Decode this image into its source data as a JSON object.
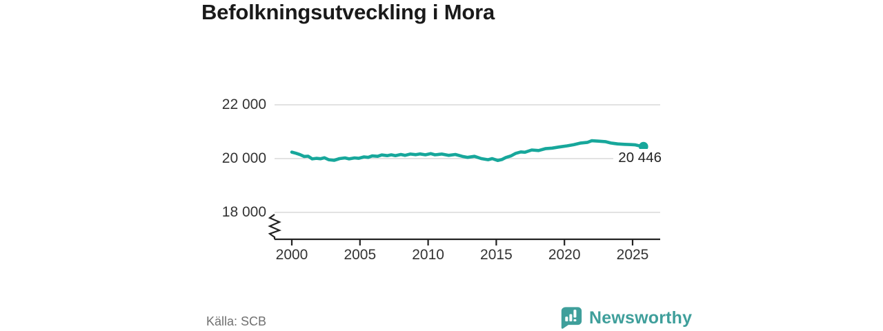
{
  "title": "Befolkningsutveckling i Mora",
  "source": "Källa: SCB",
  "branding": {
    "name": "Newsworthy",
    "icon": "newsworthy-bubble-bar-chart-icon",
    "color": "#3f9f9b"
  },
  "colors": {
    "line": "#17a79b",
    "end_dot": "#17a79b",
    "grid": "#d9d9d9",
    "axis": "#222222",
    "tick_text": "#333333",
    "title_text": "#1a1a1a",
    "source_text": "#707070"
  },
  "chart_data": {
    "type": "line",
    "title": "Befolkningsutveckling i Mora",
    "grid": true,
    "legend": "none",
    "axis_break_bottom_left": true,
    "xlim": [
      1998.7,
      2027.0
    ],
    "ylim_shown_ticks": [
      18000,
      22000
    ],
    "x": [
      2000.0,
      2000.3,
      2000.6,
      2000.9,
      2001.2,
      2001.5,
      2001.8,
      2002.1,
      2002.4,
      2002.7,
      2003.1,
      2003.5,
      2003.9,
      2004.2,
      2004.6,
      2004.9,
      2005.3,
      2005.6,
      2005.9,
      2006.3,
      2006.6,
      2007.0,
      2007.3,
      2007.6,
      2008.0,
      2008.3,
      2008.7,
      2009.1,
      2009.4,
      2009.8,
      2010.2,
      2010.5,
      2011.0,
      2011.5,
      2012.0,
      2012.5,
      2012.9,
      2013.4,
      2013.9,
      2014.4,
      2014.7,
      2015.1,
      2015.4,
      2015.7,
      2016.1,
      2016.4,
      2016.8,
      2017.1,
      2017.6,
      2018.1,
      2018.6,
      2019.1,
      2019.6,
      2020.2,
      2020.7,
      2021.2,
      2021.7,
      2022.0,
      2022.5,
      2023.0,
      2023.4,
      2023.9,
      2024.4,
      2024.9,
      2025.2,
      2025.5,
      2025.8
    ],
    "y": [
      20240,
      20200,
      20150,
      20080,
      20090,
      19990,
      20010,
      19995,
      20030,
      19960,
      19935,
      20000,
      20025,
      19990,
      20025,
      20010,
      20065,
      20045,
      20100,
      20085,
      20135,
      20110,
      20140,
      20110,
      20155,
      20120,
      20170,
      20145,
      20175,
      20140,
      20185,
      20140,
      20170,
      20120,
      20155,
      20085,
      20045,
      20085,
      20000,
      19960,
      20000,
      19930,
      19965,
      20040,
      20105,
      20190,
      20250,
      20235,
      20320,
      20300,
      20370,
      20390,
      20430,
      20475,
      20520,
      20580,
      20605,
      20665,
      20650,
      20630,
      20580,
      20545,
      20530,
      20520,
      20510,
      20475,
      20446
    ],
    "end_value": 20446,
    "end_label": "20 446",
    "yticks": [
      {
        "value": 22000,
        "label": "22 000"
      },
      {
        "value": 20000,
        "label": "20 000"
      },
      {
        "value": 18000,
        "label": "18 000"
      }
    ],
    "xticks": [
      {
        "value": 2000,
        "label": "2000"
      },
      {
        "value": 2005,
        "label": "2005"
      },
      {
        "value": 2010,
        "label": "2010"
      },
      {
        "value": 2015,
        "label": "2015"
      },
      {
        "value": 2020,
        "label": "2020"
      },
      {
        "value": 2025,
        "label": "2025"
      }
    ]
  }
}
